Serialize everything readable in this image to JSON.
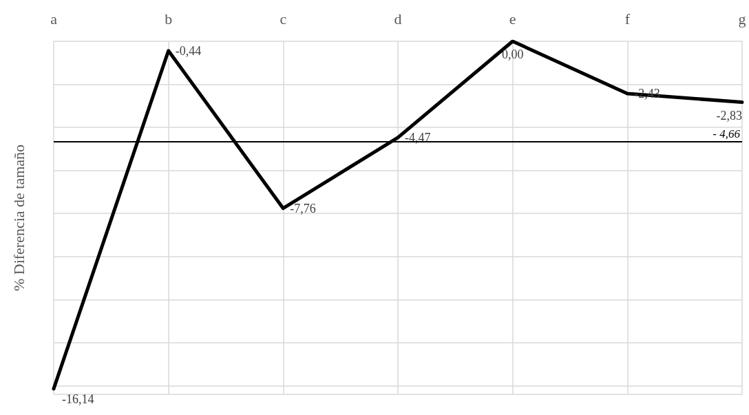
{
  "chart_data": {
    "type": "line",
    "ylabel": "% Diferencia de tamaño",
    "categories": [
      "a",
      "b",
      "c",
      "d",
      "e",
      "f",
      "g"
    ],
    "series": [
      {
        "color": "#000000",
        "values": [
          -16.14,
          -0.44,
          -7.76,
          -4.47,
          0.0,
          -2.43,
          -2.83
        ],
        "value_labels": [
          "-16,14",
          "-0,44",
          "-7,76",
          "-4,47",
          "0,00",
          "-2,43",
          "-2,83"
        ]
      }
    ],
    "ylim": [
      -16.4,
      0
    ],
    "ref_lines": [
      {
        "axis": "y",
        "value": -4.66,
        "label": "- 4,66",
        "color": "#000000"
      }
    ],
    "grid": true,
    "tick_labels": "x",
    "marker": "none",
    "line_style": "solid"
  }
}
